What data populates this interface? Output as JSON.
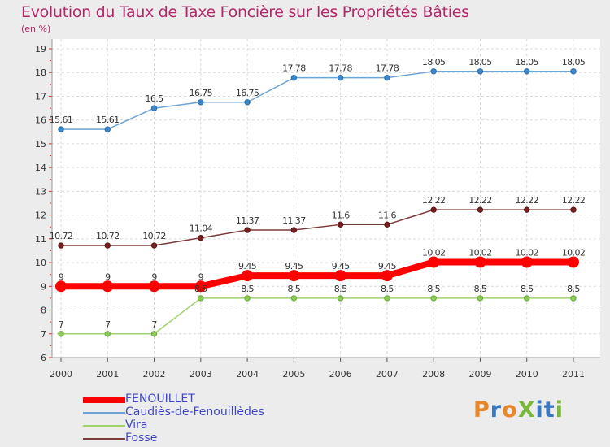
{
  "header": {
    "title": "Evolution du Taux de Taxe Foncière sur les Propriétés Bâties",
    "subtitle": "(en %)"
  },
  "logo": {
    "text": "ProXiti",
    "letters": [
      {
        "ch": "P",
        "color": "#e8862a"
      },
      {
        "ch": "r",
        "color": "#3a78c4"
      },
      {
        "ch": "o",
        "color": "#e8862a"
      },
      {
        "ch": "X",
        "color": "#7ab83a"
      },
      {
        "ch": "i",
        "color": "#3a78c4"
      },
      {
        "ch": "t",
        "color": "#3a78c4"
      },
      {
        "ch": "i",
        "color": "#7ab83a"
      }
    ]
  },
  "chart_data": {
    "type": "line",
    "title": "Evolution du Taux de Taxe Foncière sur les Propriétés Bâties",
    "ylabel": "(en %)",
    "xlabel": "",
    "ylim": [
      6,
      19
    ],
    "yticks": [
      6,
      7,
      8,
      9,
      10,
      11,
      12,
      13,
      14,
      15,
      16,
      17,
      18,
      19
    ],
    "categories": [
      "2000",
      "2001",
      "2002",
      "2003",
      "2004",
      "2005",
      "2006",
      "2007",
      "2008",
      "2009",
      "2010",
      "2011"
    ],
    "legend_position": "bottom-left",
    "series": [
      {
        "name": "FENOUILLET",
        "color": "#ff0000",
        "values": [
          9,
          9,
          9,
          9,
          9.45,
          9.45,
          9.45,
          9.45,
          10.02,
          10.02,
          10.02,
          10.02
        ],
        "labels": [
          "9",
          "9",
          "9",
          "9",
          "9.45",
          "9.45",
          "9.45",
          "9.45",
          "10.02",
          "10.02",
          "10.02",
          "10.02"
        ]
      },
      {
        "name": "Caudiès-de-Fenouillèdes",
        "color": "#6ea4d6",
        "values": [
          15.61,
          15.61,
          16.5,
          16.75,
          16.75,
          17.78,
          17.78,
          17.78,
          18.05,
          18.05,
          18.05,
          18.05
        ],
        "labels": [
          "15.61",
          "15.61",
          "16.5",
          "16.75",
          "16.75",
          "17.78",
          "17.78",
          "17.78",
          "18.05",
          "18.05",
          "18.05",
          "18.05"
        ]
      },
      {
        "name": "Vira",
        "color": "#9ed36e",
        "values": [
          7,
          7,
          7,
          8.5,
          8.5,
          8.5,
          8.5,
          8.5,
          8.5,
          8.5,
          8.5,
          8.5
        ],
        "labels": [
          "7",
          "7",
          "7",
          "8.5",
          "8.5",
          "8.5",
          "8.5",
          "8.5",
          "8.5",
          "8.5",
          "8.5",
          "8.5"
        ]
      },
      {
        "name": "Fosse",
        "color": "#7d3a3a",
        "values": [
          10.72,
          10.72,
          10.72,
          11.04,
          11.37,
          11.37,
          11.6,
          11.6,
          12.22,
          12.22,
          12.22,
          12.22
        ],
        "labels": [
          "10.72",
          "10.72",
          "10.72",
          "11.04",
          "11.37",
          "11.37",
          "11.6",
          "11.6",
          "12.22",
          "12.22",
          "12.22",
          "12.22"
        ]
      }
    ]
  }
}
